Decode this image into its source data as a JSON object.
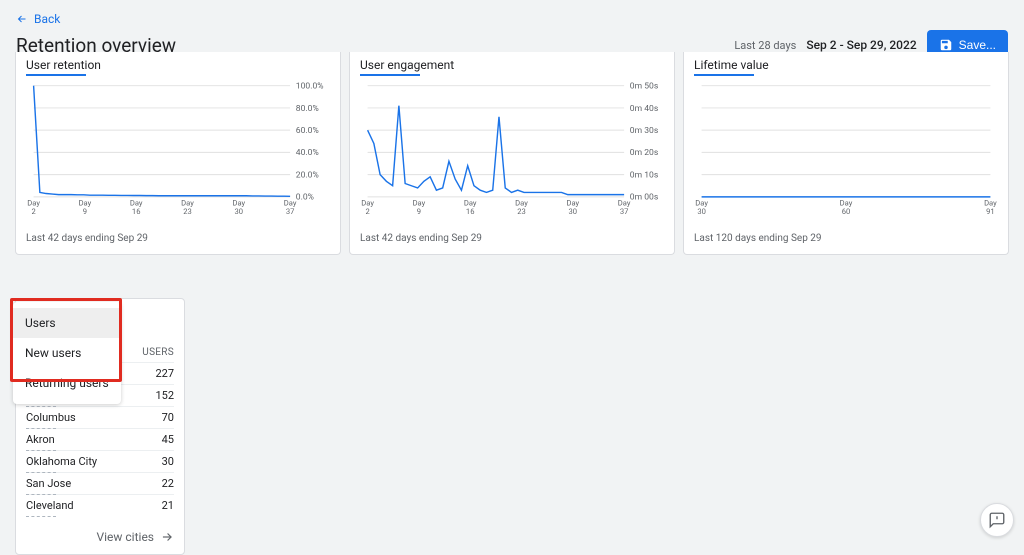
{
  "header": {
    "back_label": "Back",
    "title": "Retention overview",
    "last_days_label": "Last 28 days",
    "date_range": "Sep 2 - Sep 29, 2022",
    "save_label": "Save..."
  },
  "charts": {
    "grid_color": "#e0e0e0",
    "line_color": "#1a73e8",
    "background": "#ffffff",
    "retention": {
      "title": "User retention",
      "type": "line",
      "x_title_prefix": "Day",
      "x_ticks": [
        2,
        9,
        16,
        23,
        30,
        37
      ],
      "y_ticks_labels": [
        "0.0%",
        "20.0%",
        "40.0%",
        "60.0%",
        "80.0%",
        "100.0%"
      ],
      "ylim": [
        0,
        100
      ],
      "series": [
        100,
        4,
        3,
        2.5,
        2,
        2,
        2,
        1.8,
        1.8,
        1.5,
        1.5,
        1.5,
        1.4,
        1.4,
        1.3,
        1.3,
        1.2,
        1.2,
        1.1,
        1.1,
        1,
        1,
        1,
        1,
        1,
        1,
        1,
        1,
        1,
        1,
        1,
        1,
        1,
        1,
        1,
        0.8,
        0.8,
        0.7,
        0.7,
        0.6,
        0.6,
        0.5
      ],
      "footer": "Last 42 days ending Sep 29"
    },
    "engagement": {
      "title": "User engagement",
      "type": "line",
      "x_title_prefix": "Day",
      "x_ticks": [
        2,
        9,
        16,
        23,
        30,
        37
      ],
      "y_ticks_labels": [
        "0m 00s",
        "0m 10s",
        "0m 20s",
        "0m 30s",
        "0m 40s",
        "0m 50s"
      ],
      "ylim": [
        0,
        50
      ],
      "series": [
        30,
        24,
        10,
        7,
        5,
        41,
        6,
        5,
        4,
        7,
        9,
        3,
        4,
        16,
        8,
        3,
        14,
        5,
        3,
        2,
        3,
        36,
        4,
        2,
        3,
        2,
        2,
        2,
        2,
        2,
        2,
        2,
        1,
        1,
        1,
        1,
        1,
        1,
        1,
        1,
        1,
        1
      ],
      "footer": "Last 42 days ending Sep 29"
    },
    "lifetime": {
      "title": "Lifetime value",
      "type": "line",
      "x_title_prefix": "Day",
      "x_ticks": [
        30,
        60,
        91
      ],
      "y_ticks_labels": [],
      "ylim": [
        0,
        1
      ],
      "series": [
        0,
        0,
        0,
        0,
        0,
        0,
        0,
        0,
        0,
        0,
        0,
        0,
        0,
        0,
        0,
        0,
        0,
        0,
        0,
        0,
        0,
        0,
        0,
        0,
        0,
        0,
        0,
        0,
        0,
        0,
        0,
        0,
        0,
        0,
        0,
        0,
        0,
        0,
        0,
        0,
        0,
        0,
        0,
        0,
        0,
        0,
        0,
        0,
        0,
        0,
        0,
        0,
        0,
        0,
        0,
        0,
        0,
        0,
        0,
        0,
        0,
        0,
        0,
        0,
        0,
        0,
        0,
        0,
        0,
        0,
        0,
        0,
        0,
        0,
        0,
        0,
        0,
        0,
        0,
        0,
        0,
        0,
        0,
        0,
        0,
        0,
        0,
        0,
        0,
        0,
        0,
        0
      ],
      "footer": "Last 120 days ending Sep 29"
    }
  },
  "dropdown": {
    "items": [
      "Users",
      "New users",
      "Returning users"
    ],
    "selected": 0
  },
  "city_table": {
    "column_header": "USERS",
    "rows": [
      {
        "city": "—",
        "value": 227
      },
      {
        "city": "Boardman",
        "value": 152
      },
      {
        "city": "Columbus",
        "value": 70
      },
      {
        "city": "Akron",
        "value": 45
      },
      {
        "city": "Oklahoma City",
        "value": 30
      },
      {
        "city": "San Jose",
        "value": 22
      },
      {
        "city": "Cleveland",
        "value": 21
      }
    ],
    "view_link": "View cities"
  },
  "colors": {
    "primary": "#1a73e8",
    "highlight_border": "#e02b20",
    "page_bg": "#f1f3f4"
  }
}
